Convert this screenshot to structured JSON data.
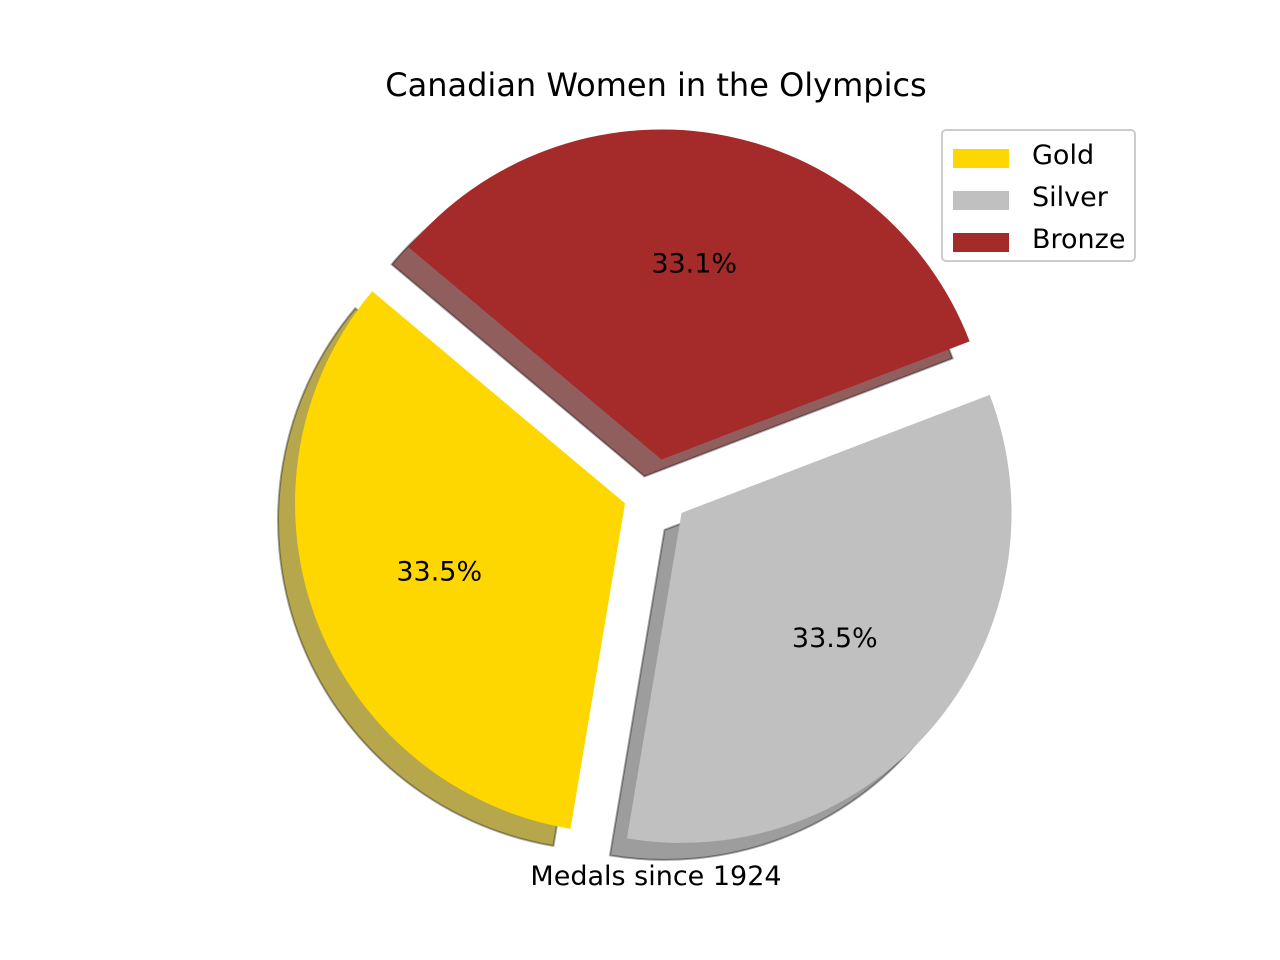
{
  "chart_data": {
    "type": "pie",
    "title": "Canadian Women in the Olympics",
    "xlabel": "Medals since 1924",
    "categories": [
      "Gold",
      "Silver",
      "Bronze"
    ],
    "values": [
      33.5,
      33.5,
      33.1
    ],
    "labels": [
      "33.5%",
      "33.5%",
      "33.1%"
    ],
    "colors": [
      "#ffd700",
      "#c0c0c0",
      "#a52a2a"
    ],
    "exploded": true,
    "shadow": true,
    "legend_location": "upper right"
  }
}
